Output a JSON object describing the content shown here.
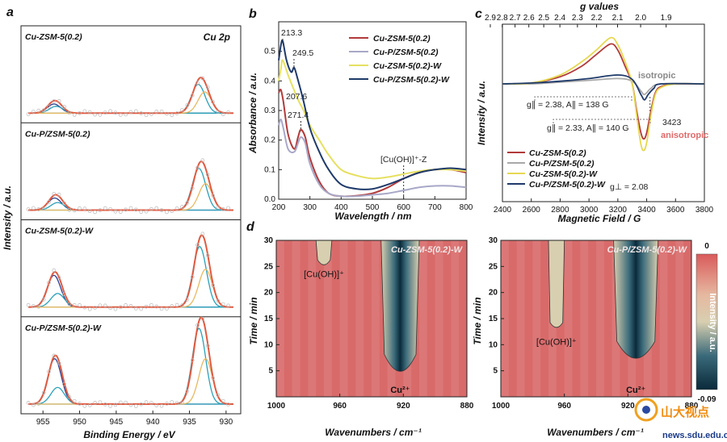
{
  "chart_data": [
    {
      "panel": "a",
      "type": "line",
      "xlabel": "Binding Energy / eV",
      "ylabel": "Intensity / a.u.",
      "xlim": [
        958,
        928
      ],
      "xticks": [
        955,
        950,
        945,
        940,
        935,
        930
      ],
      "annotation": "Cu 2p",
      "stacks": [
        {
          "label": "Cu-ZSM-5(0.2)",
          "peaks": [
            {
              "x": 953.5,
              "h": 0.12,
              "c": "#2b3f8f"
            },
            {
              "x": 953.2,
              "h": 0.09,
              "c": "#2aa0b8"
            },
            {
              "x": 933.8,
              "h": 0.38,
              "c": "#2aa0b8"
            },
            {
              "x": 932.9,
              "h": 0.28,
              "c": "#e8b860"
            }
          ]
        },
        {
          "label": "Cu-P/ZSM-5(0.2)",
          "peaks": [
            {
              "x": 953.4,
              "h": 0.16,
              "c": "#2b3f8f"
            },
            {
              "x": 953.0,
              "h": 0.1,
              "c": "#2aa0b8"
            },
            {
              "x": 933.7,
              "h": 0.55,
              "c": "#2aa0b8"
            },
            {
              "x": 932.8,
              "h": 0.35,
              "c": "#e8b860"
            }
          ]
        },
        {
          "label": "Cu-ZSM-5(0.2)-W",
          "peaks": [
            {
              "x": 953.5,
              "h": 0.42,
              "c": "#2b3f8f"
            },
            {
              "x": 953.0,
              "h": 0.18,
              "c": "#2aa0b8"
            },
            {
              "x": 933.6,
              "h": 0.8,
              "c": "#2aa0b8"
            },
            {
              "x": 932.8,
              "h": 0.5,
              "c": "#e8b860"
            }
          ]
        },
        {
          "label": "Cu-P/ZSM-5(0.2)-W",
          "peaks": [
            {
              "x": 953.4,
              "h": 0.6,
              "c": "#2b3f8f"
            },
            {
              "x": 953.0,
              "h": 0.22,
              "c": "#2aa0b8"
            },
            {
              "x": 933.7,
              "h": 1.0,
              "c": "#2aa0b8"
            },
            {
              "x": 932.8,
              "h": 0.6,
              "c": "#e8b860"
            }
          ]
        }
      ]
    },
    {
      "panel": "b",
      "type": "line",
      "xlabel": "Wavelength / nm",
      "ylabel": "Absorbance / a.u.",
      "xlim": [
        200,
        800
      ],
      "ylim": [
        0,
        0.6
      ],
      "xticks": [
        200,
        300,
        400,
        500,
        600,
        700,
        800
      ],
      "yticks": [
        0.0,
        0.1,
        0.2,
        0.3,
        0.4,
        0.5
      ],
      "annotations": [
        "213.3",
        "249.5",
        "207.6",
        "271.4",
        "[Cu(OH)]⁺-Z"
      ],
      "series": [
        {
          "name": "Cu-ZSM-5(0.2)",
          "color": "#b23a3a",
          "x": [
            200,
            207,
            215,
            230,
            250,
            262,
            271,
            285,
            300,
            330,
            360,
            400,
            450,
            500,
            550,
            600,
            650,
            700,
            750,
            800
          ],
          "y": [
            0.36,
            0.37,
            0.33,
            0.22,
            0.17,
            0.21,
            0.235,
            0.21,
            0.14,
            0.06,
            0.02,
            0.01,
            0.012,
            0.02,
            0.04,
            0.07,
            0.09,
            0.1,
            0.1,
            0.09
          ]
        },
        {
          "name": "Cu-P/ZSM-5(0.2)",
          "color": "#a8a8c8",
          "x": [
            200,
            207,
            215,
            230,
            250,
            262,
            271,
            285,
            300,
            330,
            360,
            400,
            450,
            500,
            550,
            600,
            650,
            700,
            750,
            800
          ],
          "y": [
            0.25,
            0.27,
            0.24,
            0.17,
            0.16,
            0.19,
            0.21,
            0.19,
            0.12,
            0.05,
            0.02,
            0.01,
            0.01,
            0.015,
            0.02,
            0.03,
            0.04,
            0.045,
            0.045,
            0.04
          ]
        },
        {
          "name": "Cu-ZSM-5(0.2)-W",
          "color": "#e6e060",
          "x": [
            200,
            207,
            213,
            230,
            249,
            265,
            280,
            300,
            330,
            360,
            400,
            450,
            500,
            550,
            600,
            650,
            700,
            750,
            800
          ],
          "y": [
            0.4,
            0.44,
            0.47,
            0.42,
            0.37,
            0.33,
            0.3,
            0.25,
            0.2,
            0.15,
            0.1,
            0.08,
            0.07,
            0.075,
            0.085,
            0.095,
            0.1,
            0.1,
            0.095
          ]
        },
        {
          "name": "Cu-P/ZSM-5(0.2)-W",
          "color": "#1e3a6a",
          "x": [
            200,
            207,
            213,
            225,
            240,
            249.5,
            260,
            280,
            300,
            330,
            360,
            400,
            450,
            500,
            550,
            600,
            650,
            700,
            750,
            800
          ],
          "y": [
            0.47,
            0.52,
            0.535,
            0.47,
            0.43,
            0.445,
            0.41,
            0.33,
            0.24,
            0.16,
            0.1,
            0.05,
            0.035,
            0.035,
            0.05,
            0.07,
            0.09,
            0.1,
            0.105,
            0.1
          ]
        }
      ]
    },
    {
      "panel": "c",
      "type": "line",
      "xlabel": "Magnetic Field / G",
      "ylabel": "Intensity / a.u.",
      "x2label": "g values",
      "xlim": [
        2400,
        3800
      ],
      "xticks": [
        2400,
        2600,
        2800,
        3000,
        3200,
        3400,
        3600,
        3800
      ],
      "gticks": [
        "2.9",
        "2.8",
        "2.7",
        "2.6",
        "2.5",
        "2.4",
        "2.3",
        "2.2",
        "2.1",
        "2.0",
        "1.9"
      ],
      "annotations": [
        "isotropic",
        "3423",
        "anisotropic",
        "g∥ = 2.38, A∥ = 138 G",
        "g∥ = 2.33, A∥ = 140 G",
        "g⊥ = 2.08"
      ],
      "series": [
        {
          "name": "Cu-ZSM-5(0.2)",
          "color": "#b23a3a",
          "x": [
            2400,
            2600,
            2800,
            2950,
            3050,
            3150,
            3200,
            3250,
            3300,
            3330,
            3360,
            3380,
            3400,
            3430,
            3460,
            3500,
            3600,
            3800
          ],
          "y": [
            0,
            0.01,
            0.08,
            0.2,
            0.33,
            0.45,
            0.38,
            0.2,
            0.0,
            -0.3,
            -0.55,
            -0.62,
            -0.55,
            -0.3,
            -0.1,
            -0.03,
            0,
            0
          ]
        },
        {
          "name": "Cu-P/ZSM-5(0.2)",
          "color": "#a8a8a8",
          "x": [
            2400,
            2600,
            2800,
            3000,
            3200,
            3300,
            3360,
            3380,
            3400,
            3430,
            3500,
            3800
          ],
          "y": [
            0,
            0,
            0.02,
            0.04,
            0.06,
            0.03,
            -0.08,
            -0.12,
            -0.1,
            -0.05,
            0,
            0
          ]
        },
        {
          "name": "Cu-ZSM-5(0.2)-W",
          "color": "#e6d850",
          "x": [
            2400,
            2600,
            2800,
            2950,
            3050,
            3150,
            3200,
            3250,
            3300,
            3330,
            3360,
            3380,
            3400,
            3430,
            3460,
            3500,
            3600,
            3800
          ],
          "y": [
            0,
            0.01,
            0.1,
            0.25,
            0.38,
            0.52,
            0.44,
            0.25,
            0.0,
            -0.35,
            -0.68,
            -0.75,
            -0.66,
            -0.35,
            -0.12,
            -0.04,
            0,
            0
          ]
        },
        {
          "name": "Cu-P/ZSM-5(0.2)-W",
          "color": "#1e3a6a",
          "x": [
            2400,
            2600,
            2800,
            3000,
            3200,
            3300,
            3360,
            3385,
            3410,
            3450,
            3500,
            3800
          ],
          "y": [
            0,
            0.01,
            0.03,
            0.06,
            0.1,
            0.05,
            -0.12,
            -0.18,
            -0.12,
            -0.05,
            0,
            0
          ]
        }
      ]
    },
    {
      "panel": "d",
      "type": "heatmap",
      "xlabel": "Wavenumbers / cm⁻¹",
      "ylabel": "Time / min",
      "xlim": [
        1000,
        880
      ],
      "ylim": [
        0,
        30
      ],
      "xticks": [
        1000,
        960,
        920,
        880
      ],
      "yticks": [
        5,
        10,
        15,
        20,
        25,
        30
      ],
      "colorbar": {
        "label": "Intensity / a.u.",
        "max": "0",
        "min": "-0.09",
        "stops": [
          "#d95a5a",
          "#e6b8a0",
          "#d8cfb0",
          "#3a6a7a",
          "#0a2a3a"
        ]
      },
      "maps": [
        {
          "title": "Cu-ZSM-5(0.2)-W",
          "labels": [
            "[Cu(OH)]⁺",
            "Cu²⁺"
          ],
          "band_center": 922,
          "band_width": 12,
          "band_start": 3.5,
          "minor_center": 970,
          "minor_start": 25
        },
        {
          "title": "Cu-P/ZSM-5(0.2)-W",
          "labels": [
            "[Cu(OH)]⁺",
            "Cu²⁺"
          ],
          "band_center": 915,
          "band_width": 14,
          "band_start": 6,
          "minor_center": 965,
          "minor_start": 13
        }
      ]
    }
  ],
  "watermark": {
    "text": "山大视点",
    "url": "news.sdu.edu.cn"
  }
}
